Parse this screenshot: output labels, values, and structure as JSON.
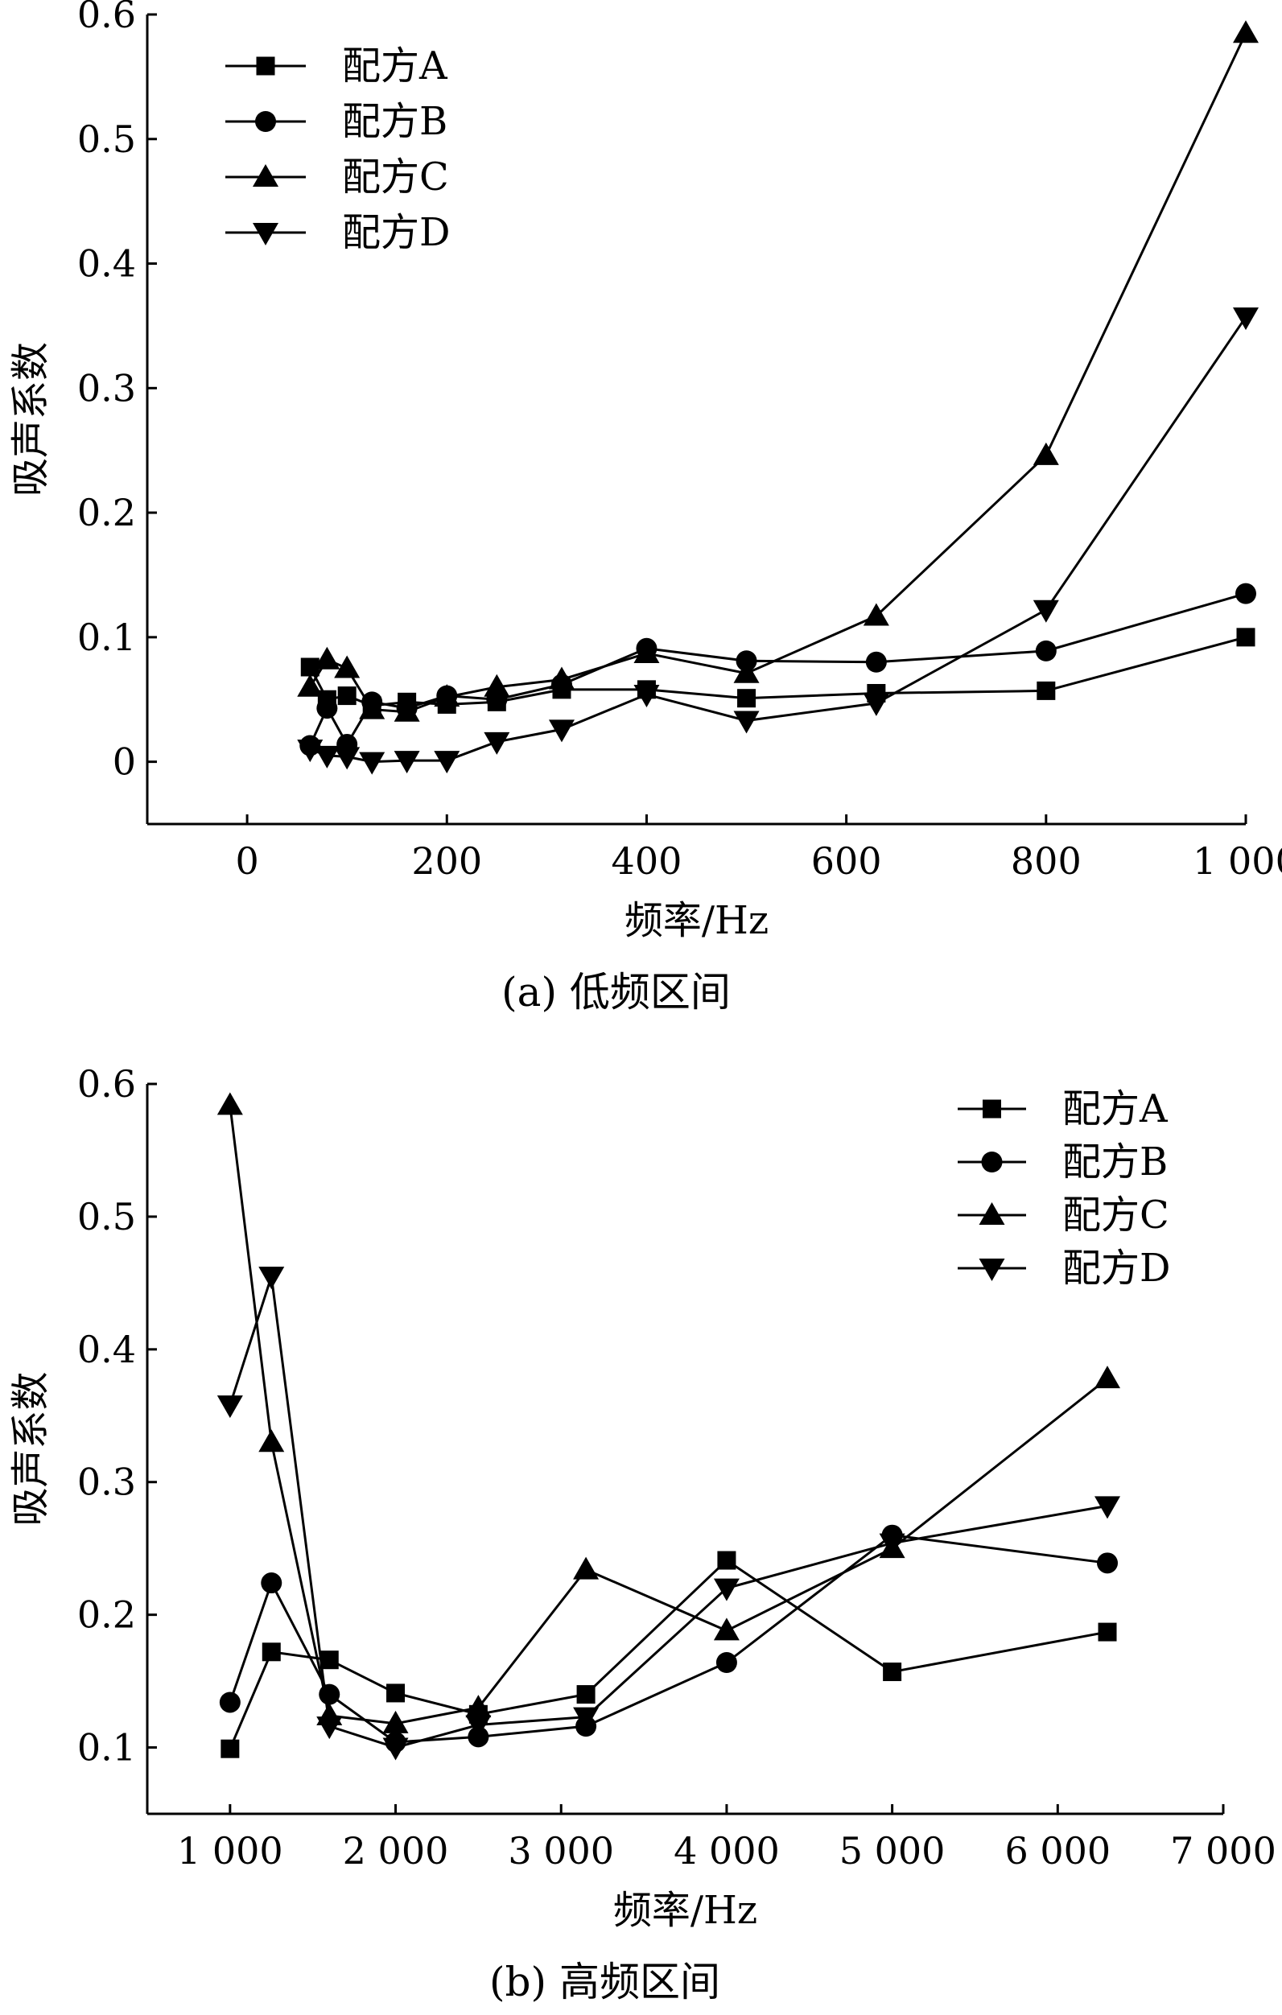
{
  "chart_data": [
    {
      "type": "line",
      "caption": "(a) 低频区间",
      "xlabel": "频率/Hz",
      "ylabel": "吸声系数",
      "xlim": [
        -100,
        1000
      ],
      "ylim": [
        -0.05,
        0.6
      ],
      "xticks": [
        0,
        200,
        400,
        600,
        800,
        1000
      ],
      "xtick_labels": [
        "0",
        "200",
        "400",
        "600",
        "800",
        "1 000"
      ],
      "yticks": [
        0,
        0.1,
        0.2,
        0.3,
        0.4,
        0.5,
        0.6
      ],
      "ytick_labels": [
        "0",
        "0.1",
        "0.2",
        "0.3",
        "0.4",
        "0.5",
        "0.6"
      ],
      "legend_position": "top-left",
      "series": [
        {
          "name": "配方A",
          "marker": "square",
          "x": [
            63,
            80,
            100,
            125,
            160,
            200,
            250,
            315,
            400,
            500,
            630,
            800,
            1000
          ],
          "y": [
            0.076,
            0.05,
            0.053,
            0.045,
            0.048,
            0.046,
            0.048,
            0.058,
            0.058,
            0.051,
            0.055,
            0.057,
            0.1
          ]
        },
        {
          "name": "配方B",
          "marker": "circle",
          "x": [
            63,
            80,
            100,
            125,
            160,
            200,
            250,
            315,
            400,
            500,
            630,
            800,
            1000
          ],
          "y": [
            0.013,
            0.043,
            0.014,
            0.048,
            0.043,
            0.053,
            0.05,
            0.062,
            0.091,
            0.081,
            0.08,
            0.089,
            0.135
          ]
        },
        {
          "name": "配方C",
          "marker": "triangle-up",
          "x": [
            63,
            80,
            100,
            125,
            160,
            200,
            250,
            315,
            400,
            500,
            630,
            800,
            1000
          ],
          "y": [
            0.06,
            0.082,
            0.075,
            0.042,
            0.04,
            0.052,
            0.06,
            0.066,
            0.087,
            0.071,
            0.117,
            0.246,
            0.585
          ]
        },
        {
          "name": "配方D",
          "marker": "triangle-down",
          "x": [
            63,
            80,
            100,
            125,
            160,
            200,
            250,
            315,
            400,
            500,
            630,
            800,
            1000
          ],
          "y": [
            0.01,
            0.005,
            0.004,
            0.0,
            0.001,
            0.001,
            0.016,
            0.026,
            0.054,
            0.033,
            0.047,
            0.122,
            0.357
          ]
        }
      ]
    },
    {
      "type": "line",
      "caption": "(b) 高频区间",
      "xlabel": "频率/Hz",
      "ylabel": "吸声系数",
      "xlim": [
        500,
        7000
      ],
      "ylim": [
        0.05,
        0.6
      ],
      "xticks": [
        1000,
        2000,
        3000,
        4000,
        5000,
        6000,
        7000
      ],
      "xtick_labels": [
        "1 000",
        "2 000",
        "3 000",
        "4 000",
        "5 000",
        "6 000",
        "7 000"
      ],
      "yticks": [
        0.1,
        0.2,
        0.3,
        0.4,
        0.5,
        0.6
      ],
      "ytick_labels": [
        "0.1",
        "0.2",
        "0.3",
        "0.4",
        "0.5",
        "0.6"
      ],
      "legend_position": "top-right",
      "series": [
        {
          "name": "配方A",
          "marker": "square",
          "x": [
            1000,
            1250,
            1600,
            2000,
            2500,
            3150,
            4000,
            5000,
            6300
          ],
          "y": [
            0.099,
            0.172,
            0.166,
            0.141,
            0.125,
            0.14,
            0.241,
            0.157,
            0.187
          ]
        },
        {
          "name": "配方B",
          "marker": "circle",
          "x": [
            1000,
            1250,
            1600,
            2000,
            2500,
            3150,
            4000,
            5000,
            6300
          ],
          "y": [
            0.134,
            0.224,
            0.14,
            0.104,
            0.108,
            0.116,
            0.164,
            0.26,
            0.239
          ]
        },
        {
          "name": "配方C",
          "marker": "triangle-up",
          "x": [
            1000,
            1250,
            1600,
            2000,
            2500,
            3150,
            4000,
            5000,
            6300
          ],
          "y": [
            0.584,
            0.33,
            0.124,
            0.118,
            0.13,
            0.234,
            0.188,
            0.25,
            0.378
          ]
        },
        {
          "name": "配方D",
          "marker": "triangle-down",
          "x": [
            1000,
            1250,
            1600,
            2000,
            2500,
            3150,
            4000,
            5000,
            6300
          ],
          "y": [
            0.358,
            0.455,
            0.116,
            0.1,
            0.117,
            0.123,
            0.22,
            0.254,
            0.282
          ]
        }
      ]
    }
  ]
}
